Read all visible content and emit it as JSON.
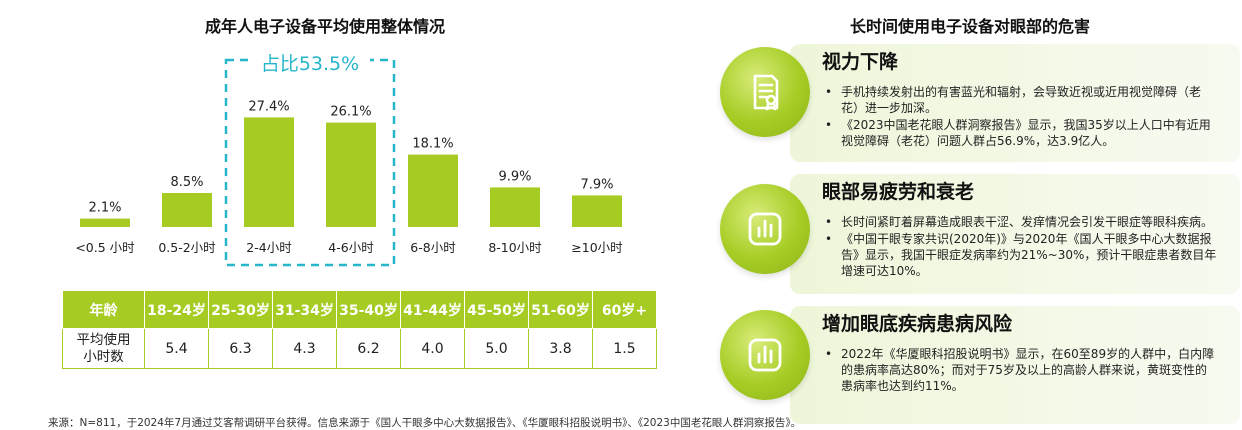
{
  "left": {
    "title": "成年人电子设备平均使用整体情况"
  },
  "chart_data": {
    "type": "bar",
    "categories": [
      "<0.5 小时",
      "0.5-2小时",
      "2-4小时",
      "4-6小时",
      "6-8小时",
      "8-10小时",
      "≥10小时"
    ],
    "values": [
      2.1,
      8.5,
      27.4,
      26.1,
      18.1,
      9.9,
      7.9
    ],
    "value_labels": [
      "2.1%",
      "8.5%",
      "27.4%",
      "26.1%",
      "18.1%",
      "9.9%",
      "7.9%"
    ],
    "unit": "%",
    "highlight": {
      "categories": [
        "2-4小时",
        "4-6小时"
      ],
      "label": "占比53.5%"
    },
    "bar_color": "#a6cc24",
    "highlight_color": "#27b6c9"
  },
  "table": {
    "row_header": "年龄",
    "ages": [
      "18-24岁",
      "25-30岁",
      "31-34岁",
      "35-40岁",
      "41-44岁",
      "45-50岁",
      "51-60岁",
      "60岁+"
    ],
    "value_header_line1": "平均使用",
    "value_header_line2": "小时数",
    "values": [
      "5.4",
      "6.3",
      "4.3",
      "6.2",
      "4.0",
      "5.0",
      "3.8",
      "1.5"
    ]
  },
  "source": "来源：N=811，于2024年7月通过艾客帮调研平台获得。信息来源于《国人干眼多中心大数据报告》、《华厦眼科招股说明书》、《2023中国老花眼人群洞察报告》。",
  "right": {
    "title": "长时间使用电子设备对眼部的危害",
    "cards": [
      {
        "title": "视力下降",
        "icon": "document-icon",
        "bullets": [
          "手机持续发射出的有害蓝光和辐射，会导致近视或近用视觉障碍（老花）进一步加深。",
          "《2023中国老花眼人群洞察报告》显示，我国35岁以上人口中有近用视觉障碍（老花）问题人群占56.9%，达3.9亿人。"
        ]
      },
      {
        "title": "眼部易疲劳和衰老",
        "icon": "bar-chart-icon",
        "bullets": [
          "长时间紧盯着屏幕造成眼表干涩、发痒情况会引发干眼症等眼科疾病。",
          "《中国干眼专家共识(2020年)》与2020年《国人干眼多中心大数据报告》显示，我国干眼症发病率约为21%~30%，预计干眼症患者数目年增速可达10%。"
        ]
      },
      {
        "title": "增加眼底疾病患病风险",
        "icon": "bar-chart-icon",
        "bullets": [
          "2022年《华厦眼科招股说明书》显示，在60至89岁的人群中，白内障的患病率高达80%；而对于75岁及以上的高龄人群来说，黄斑变性的患病率也达到约11%。"
        ]
      }
    ]
  }
}
